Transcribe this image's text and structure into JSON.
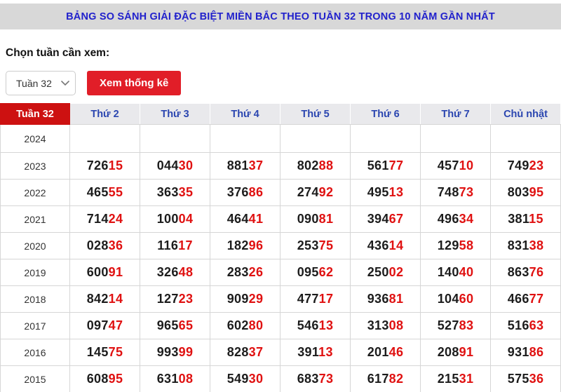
{
  "title": "BẢNG SO SÁNH GIẢI ĐẶC BIỆT MIỀN BẮC THEO TUẦN 32 TRONG 10 NĂM GẦN NHẤT",
  "controls": {
    "label": "Chọn tuần cần xem:",
    "week_select": {
      "value": "Tuần 32"
    },
    "submit_label": "Xem thống kê"
  },
  "table": {
    "headers": [
      "Tuần 32",
      "Thứ 2",
      "Thứ 3",
      "Thứ 4",
      "Thứ 5",
      "Thứ 6",
      "Thứ 7",
      "Chủ nhật"
    ],
    "highlight_last_digits": 2,
    "rows": [
      {
        "year": "2024",
        "values": [
          "",
          "",
          "",
          "",
          "",
          "",
          ""
        ]
      },
      {
        "year": "2023",
        "values": [
          "72615",
          "04430",
          "88137",
          "80288",
          "56177",
          "45710",
          "74923"
        ]
      },
      {
        "year": "2022",
        "values": [
          "46555",
          "36335",
          "37686",
          "27492",
          "49513",
          "74873",
          "80395"
        ]
      },
      {
        "year": "2021",
        "values": [
          "71424",
          "10004",
          "46441",
          "09081",
          "39467",
          "49634",
          "38115"
        ]
      },
      {
        "year": "2020",
        "values": [
          "02836",
          "11617",
          "18296",
          "25375",
          "43614",
          "12958",
          "83138"
        ]
      },
      {
        "year": "2019",
        "values": [
          "60091",
          "32648",
          "28326",
          "09562",
          "25002",
          "14040",
          "86376"
        ]
      },
      {
        "year": "2018",
        "values": [
          "84214",
          "12723",
          "90929",
          "47717",
          "93681",
          "10460",
          "46677"
        ]
      },
      {
        "year": "2017",
        "values": [
          "09747",
          "96565",
          "60280",
          "54613",
          "31308",
          "52783",
          "51663"
        ]
      },
      {
        "year": "2016",
        "values": [
          "14575",
          "99399",
          "82837",
          "39113",
          "20146",
          "20891",
          "93186"
        ]
      },
      {
        "year": "2015",
        "values": [
          "60895",
          "63108",
          "54930",
          "68373",
          "61782",
          "21531",
          "57536"
        ]
      }
    ]
  },
  "colors": {
    "title_blue": "#2121cc",
    "header_blue": "#2b46b0",
    "header_red": "#cd1111",
    "button_red": "#e11e28",
    "digit_red": "#e01111",
    "title_bar_bg": "#d8d8d8",
    "header_bg": "#e9e9ec",
    "border": "#d6d6d6"
  }
}
